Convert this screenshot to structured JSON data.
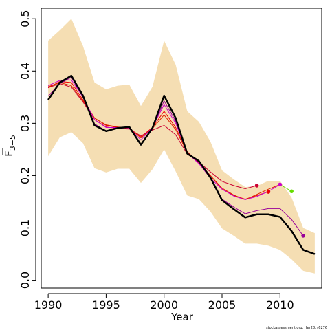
{
  "chart_data": {
    "type": "line",
    "xlabel": "Year",
    "ylabel_main": "F",
    "ylabel_sub": "3−5",
    "xlim": [
      1989.4,
      2013.6
    ],
    "ylim": [
      -0.015,
      0.52
    ],
    "xticks": [
      1990,
      1995,
      2000,
      2005,
      2010
    ],
    "yticks": [
      0.0,
      0.1,
      0.2,
      0.3,
      0.4,
      0.5
    ],
    "ytick_labels": [
      "0.0",
      "0.1",
      "0.2",
      "0.3",
      "0.4",
      "0.5"
    ],
    "grid": false,
    "confidence_band": {
      "x": [
        1990,
        1991,
        1992,
        1993,
        1994,
        1995,
        1996,
        1997,
        1998,
        1999,
        2000,
        2001,
        2002,
        2003,
        2004,
        2005,
        2006,
        2007,
        2008,
        2009,
        2010,
        2011,
        2012,
        2013
      ],
      "upper": [
        0.458,
        0.478,
        0.5,
        0.448,
        0.378,
        0.365,
        0.372,
        0.374,
        0.333,
        0.37,
        0.458,
        0.412,
        0.323,
        0.303,
        0.265,
        0.21,
        0.193,
        0.178,
        0.18,
        0.19,
        0.19,
        0.158,
        0.1,
        0.09
      ],
      "lower": [
        0.237,
        0.273,
        0.283,
        0.262,
        0.214,
        0.206,
        0.213,
        0.213,
        0.186,
        0.212,
        0.25,
        0.208,
        0.162,
        0.155,
        0.131,
        0.099,
        0.085,
        0.07,
        0.07,
        0.066,
        0.058,
        0.04,
        0.018,
        0.013
      ],
      "color": "#f5deb3"
    },
    "series": [
      {
        "color": "#000000",
        "width": 2.5,
        "x": [
          1990,
          1991,
          1992,
          1993,
          1994,
          1995,
          1996,
          1997,
          1998,
          1999,
          2000,
          2001,
          2002,
          2003,
          2004,
          2005,
          2006,
          2007,
          2008,
          2009,
          2010,
          2011,
          2012,
          2013
        ],
        "values": [
          0.345,
          0.378,
          0.391,
          0.353,
          0.296,
          0.285,
          0.291,
          0.293,
          0.259,
          0.291,
          0.353,
          0.31,
          0.242,
          0.228,
          0.196,
          0.153,
          0.136,
          0.12,
          0.126,
          0.126,
          0.121,
          0.094,
          0.058,
          0.05
        ]
      },
      {
        "color": "#ee0000",
        "width": 1,
        "x": [
          1990,
          1991,
          1992,
          1993,
          1994,
          1995,
          1996,
          1997,
          1998,
          1999,
          2000,
          2001,
          2002,
          2003,
          2004,
          2005,
          2006,
          2007,
          2008,
          2009
        ],
        "values": [
          0.368,
          0.38,
          0.378,
          0.345,
          0.31,
          0.296,
          0.292,
          0.29,
          0.274,
          0.292,
          0.323,
          0.292,
          0.246,
          0.224,
          0.2,
          0.174,
          0.162,
          0.155,
          0.162,
          0.169
        ],
        "end_point": [
          2009,
          0.169
        ]
      },
      {
        "color": "#dd2200",
        "width": 1,
        "x": [
          1990,
          1991,
          1992,
          1993,
          1994,
          1995,
          1996,
          1997,
          1998,
          1999,
          2000,
          2001,
          2002,
          2003,
          2004,
          2005,
          2006,
          2007,
          2008,
          2009,
          2010
        ],
        "values": [
          0.37,
          0.378,
          0.372,
          0.343,
          0.31,
          0.297,
          0.293,
          0.291,
          0.272,
          0.29,
          0.316,
          0.288,
          0.244,
          0.225,
          0.2,
          0.176,
          0.163,
          0.154,
          0.164,
          0.174,
          0.183
        ]
      },
      {
        "color": "#cc0033",
        "width": 1,
        "x": [
          1990,
          1991,
          1992,
          1993,
          1994,
          1995,
          1996,
          1997,
          1998,
          1999,
          2000,
          2001,
          2002,
          2003,
          2004,
          2005,
          2006,
          2007,
          2008
        ],
        "values": [
          0.368,
          0.376,
          0.369,
          0.341,
          0.307,
          0.293,
          0.29,
          0.289,
          0.276,
          0.287,
          0.296,
          0.278,
          0.241,
          0.226,
          0.207,
          0.189,
          0.181,
          0.175,
          0.181
        ],
        "end_point": [
          2008,
          0.181
        ]
      },
      {
        "color": "#cc00cc",
        "width": 1,
        "x": [
          1990,
          1991,
          1992,
          1993,
          1994,
          1995,
          1996,
          1997,
          1998,
          1999,
          2000,
          2001,
          2002,
          2003,
          2004,
          2005,
          2006,
          2007,
          2008,
          2009,
          2010
        ],
        "values": [
          0.372,
          0.382,
          0.383,
          0.35,
          0.307,
          0.292,
          0.292,
          0.291,
          0.268,
          0.292,
          0.336,
          0.3,
          0.243,
          0.223,
          0.195,
          0.174,
          0.161,
          0.154,
          0.16,
          0.17,
          0.183
        ],
        "end_point": [
          2010,
          0.183
        ]
      },
      {
        "color": "#66dd00",
        "width": 1,
        "x": [
          2010,
          2011
        ],
        "values": [
          0.183,
          0.17
        ],
        "end_point": [
          2011,
          0.17
        ]
      },
      {
        "color": "#990099",
        "width": 1,
        "x": [
          1990,
          1991,
          1992,
          1993,
          1994,
          1995,
          1996,
          1997,
          1998,
          1999,
          2000,
          2001,
          2002,
          2003,
          2004,
          2005,
          2006,
          2007,
          2008,
          2009,
          2010,
          2011,
          2012
        ],
        "values": [
          0.352,
          0.376,
          0.388,
          0.35,
          0.299,
          0.285,
          0.29,
          0.292,
          0.26,
          0.29,
          0.343,
          0.304,
          0.242,
          0.229,
          0.198,
          0.155,
          0.14,
          0.127,
          0.133,
          0.137,
          0.137,
          0.116,
          0.085
        ],
        "end_point": [
          2012,
          0.085
        ]
      }
    ],
    "credit": "stockassessment.org, Her28, r6276"
  }
}
